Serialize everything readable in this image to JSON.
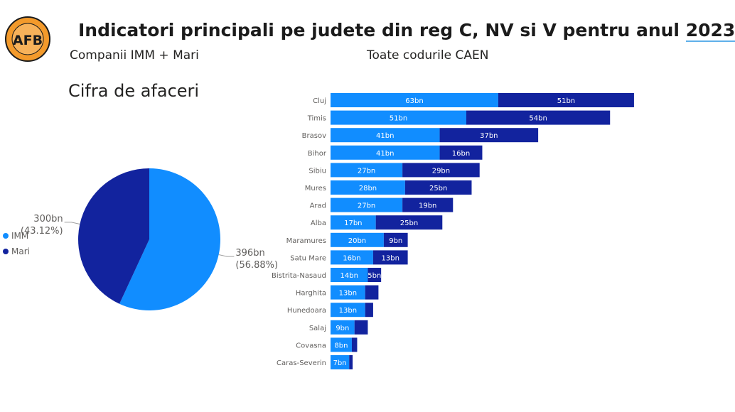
{
  "header": {
    "logo_text": "AFB",
    "title": "Indicatori principali pe judete din reg C, NV si V pentru anul",
    "year": "2023",
    "subtitle_left": "Companii IMM + Mari",
    "subtitle_right": "Toate codurile CAEN"
  },
  "colors": {
    "imm": "#118dff",
    "mari": "#12239e"
  },
  "chart_data": [
    {
      "type": "pie",
      "title": "Cifra de afaceri",
      "legend_position": "left",
      "slices": [
        {
          "name": "IMM",
          "value": 396,
          "label": "396bn",
          "percent": "(56.88%)"
        },
        {
          "name": "Mari",
          "value": 300,
          "label": "300bn",
          "percent": "(43.12%)"
        }
      ]
    },
    {
      "type": "bar",
      "orientation": "horizontal",
      "stacked": true,
      "categories": [
        "Cluj",
        "Timis",
        "Brasov",
        "Bihor",
        "Sibiu",
        "Mures",
        "Arad",
        "Alba",
        "Maramures",
        "Satu Mare",
        "Bistrita-Nasaud",
        "Harghita",
        "Hunedoara",
        "Salaj",
        "Covasna",
        "Caras-Severin"
      ],
      "series": [
        {
          "name": "IMM",
          "values": [
            63,
            51,
            41,
            41,
            27,
            28,
            27,
            17,
            20,
            16,
            14,
            13,
            13,
            9,
            8,
            7
          ],
          "labels": [
            "63bn",
            "51bn",
            "41bn",
            "41bn",
            "27bn",
            "28bn",
            "27bn",
            "17bn",
            "20bn",
            "16bn",
            "14bn",
            "13bn",
            "13bn",
            "9bn",
            "8bn",
            "7bn"
          ]
        },
        {
          "name": "Mari",
          "values": [
            51,
            54,
            37,
            16,
            29,
            25,
            19,
            25,
            9,
            13,
            5,
            5,
            3,
            5,
            2,
            1.3
          ],
          "labels": [
            "51bn",
            "54bn",
            "37bn",
            "16bn",
            "29bn",
            "25bn",
            "19bn",
            "25bn",
            "9bn",
            "13bn",
            "5bn",
            "",
            "",
            "",
            "",
            ""
          ]
        }
      ],
      "grid": false
    }
  ]
}
